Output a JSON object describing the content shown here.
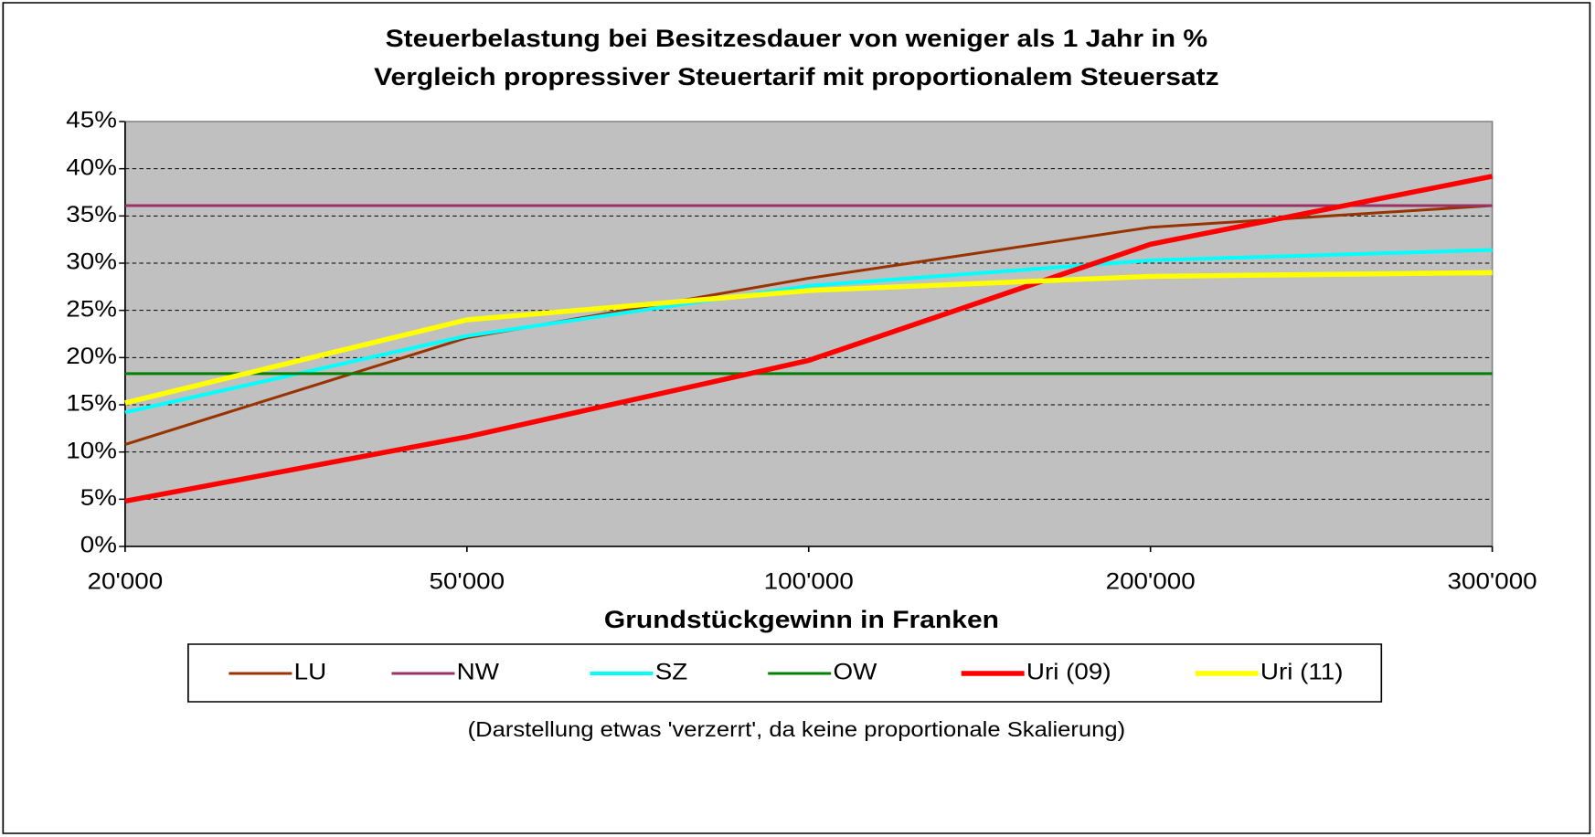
{
  "chart_data": {
    "type": "line",
    "title": "Steuerbelastung bei Besitzesdauer von weniger als 1 Jahr in %",
    "subtitle": "Vergleich propressiver Steuertarif mit proportionalem Steuersatz",
    "x_label": "Grundstückgewinn in Franken",
    "note": "(Darstellung etwas 'verzerrt', da keine proportionale Skalierung)",
    "categories": [
      "20'000",
      "50'000",
      "100'000",
      "200'000",
      "300'000"
    ],
    "ylim": [
      0,
      45
    ],
    "yticks": [
      {
        "value": 0,
        "label": "0%"
      },
      {
        "value": 5,
        "label": "5%"
      },
      {
        "value": 10,
        "label": "10%"
      },
      {
        "value": 15,
        "label": "15%"
      },
      {
        "value": 20,
        "label": "20%"
      },
      {
        "value": 25,
        "label": "25%"
      },
      {
        "value": 30,
        "label": "30%"
      },
      {
        "value": 35,
        "label": "35%"
      },
      {
        "value": 40,
        "label": "40%"
      },
      {
        "value": 45,
        "label": "45%"
      }
    ],
    "grid": true,
    "legend": "bottom",
    "series": [
      {
        "name": "LU",
        "color": "#993300",
        "values": [
          10.8,
          22.1,
          28.4,
          33.8,
          36.1
        ]
      },
      {
        "name": "NW",
        "color": "#993366",
        "values": [
          36.1,
          36.1,
          36.1,
          36.1,
          36.1
        ]
      },
      {
        "name": "SZ",
        "color": "#00ffff",
        "values": [
          14.2,
          22.3,
          27.6,
          30.3,
          31.4
        ]
      },
      {
        "name": "OW",
        "color": "#008000",
        "values": [
          18.3,
          18.3,
          18.3,
          18.3,
          18.3
        ]
      },
      {
        "name": "Uri (09)",
        "color": "#ff0000",
        "values": [
          4.8,
          11.6,
          19.7,
          32,
          39.2
        ]
      },
      {
        "name": "Uri (11)",
        "color": "#ffff00",
        "values": [
          15.2,
          24,
          27.1,
          28.6,
          29
        ]
      }
    ]
  }
}
